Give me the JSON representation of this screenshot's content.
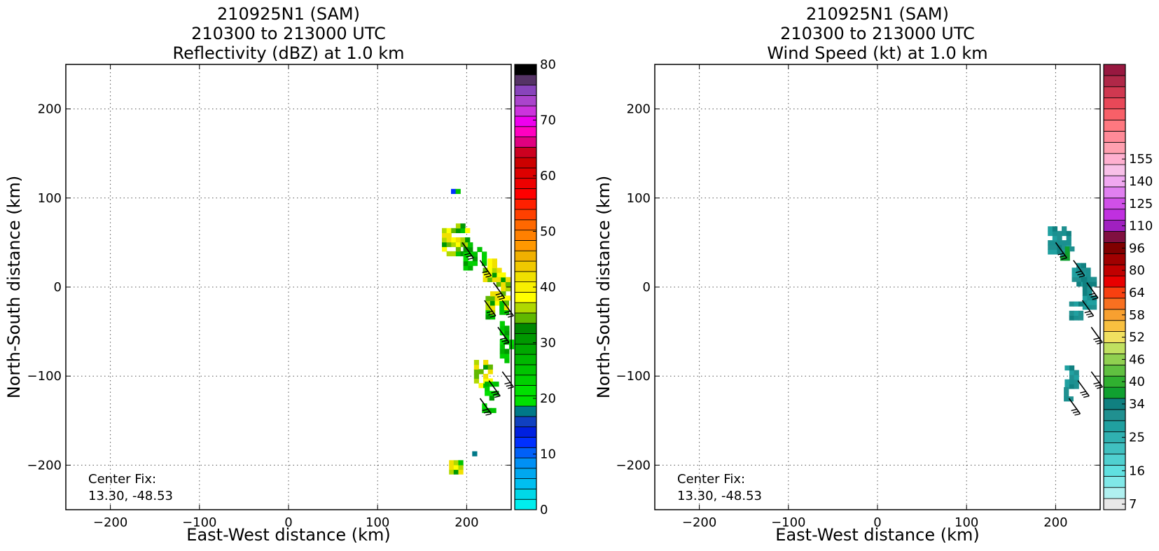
{
  "chart_data": [
    {
      "type": "heatmap",
      "title_lines": [
        "210925N1 (SAM)",
        "210300 to 213000 UTC",
        "Reflectivity (dBZ) at 1.0 km"
      ],
      "xlabel": "East-West distance (km)",
      "ylabel": "North-South distance (km)",
      "xlim": [
        -250,
        250
      ],
      "ylim": [
        -250,
        250
      ],
      "xticks": [
        -200,
        -100,
        0,
        100,
        200
      ],
      "yticks": [
        -200,
        -100,
        0,
        100,
        200
      ],
      "grid": true,
      "annotation": [
        "Center Fix:",
        "13.30, -48.53"
      ],
      "colorbar": {
        "min": 0,
        "max": 80,
        "tick_labels": [
          "0",
          "10",
          "20",
          "30",
          "40",
          "50",
          "60",
          "70",
          "80"
        ],
        "tick_values": [
          0,
          10,
          20,
          30,
          40,
          50,
          60,
          70,
          80
        ],
        "colors": [
          "#00eeee",
          "#00d8e8",
          "#00bff0",
          "#00a8f0",
          "#0090f5",
          "#0060f8",
          "#0030ff",
          "#0020e0",
          "#1040c0",
          "#007888",
          "#00e000",
          "#00e000",
          "#00d000",
          "#00c400",
          "#00b800",
          "#00a800",
          "#009800",
          "#008800",
          "#60b800",
          "#b0d800",
          "#ffff00",
          "#f8f000",
          "#f0e000",
          "#f0c800",
          "#f0b000",
          "#ff9800",
          "#ff8000",
          "#ff6800",
          "#ff4000",
          "#ff2000",
          "#ff0000",
          "#ee0000",
          "#dd0000",
          "#cc0000",
          "#cc0020",
          "#e00080",
          "#ff00c0",
          "#ee00ee",
          "#cc33dd",
          "#aa44cc",
          "#8844bb",
          "#553366",
          "#000000"
        ]
      },
      "shown_field": "reflectivity echoes (about 10-40 dBZ, mostly green to yellow) along the eastern edge between x approx 170 to 250 km and y approx -205 to 115 km",
      "wind_barbs": "black barbs along the rainband near x 200-245 km"
    },
    {
      "type": "heatmap",
      "title_lines": [
        "210925N1 (SAM)",
        "210300 to 213000 UTC",
        "Wind Speed (kt) at 1.0 km"
      ],
      "xlabel": "East-West distance (km)",
      "ylabel": "North-South distance (km)",
      "xlim": [
        -250,
        250
      ],
      "ylim": [
        -250,
        250
      ],
      "xticks": [
        -200,
        -100,
        0,
        100,
        200
      ],
      "yticks": [
        -200,
        -100,
        0,
        100,
        200
      ],
      "grid": true,
      "annotation": [
        "Center Fix:",
        "13.30, -48.53"
      ],
      "colorbar": {
        "tick_labels": [
          "7",
          "16",
          "25",
          "34",
          "40",
          "46",
          "52",
          "58",
          "64",
          "80",
          "96",
          "110",
          "125",
          "140",
          "155"
        ],
        "tick_bins": [
          0,
          3,
          6,
          9,
          11,
          13,
          15,
          17,
          19,
          21,
          23,
          25,
          27,
          29,
          31
        ],
        "colors": [
          "#e8e8e8",
          "#b0f0f0",
          "#80e8e8",
          "#60e0e0",
          "#50d0d0",
          "#40c0c0",
          "#30b0b0",
          "#20a0a0",
          "#209090",
          "#108080",
          "#10a030",
          "#30b030",
          "#60c040",
          "#90d050",
          "#c0e060",
          "#f0e060",
          "#f8c040",
          "#f8a030",
          "#f87020",
          "#f84010",
          "#e80000",
          "#c00000",
          "#a00000",
          "#800000",
          "#801040",
          "#a020c0",
          "#c030e0",
          "#d050e8",
          "#e080f0",
          "#f0a8f0",
          "#f8c0e8",
          "#ffb0d0",
          "#ffa0b0",
          "#ff8a98",
          "#ff7880",
          "#f86068",
          "#e84858",
          "#d03850",
          "#b02848",
          "#981840"
        ]
      },
      "shown_field": "wind speeds mostly 25-34 kt (teal) along the eastern edge between x approx 178 to 245 km and y approx -135 to 85 km",
      "wind_barbs": "black barbs along the rainband near x 200-245 km"
    }
  ]
}
